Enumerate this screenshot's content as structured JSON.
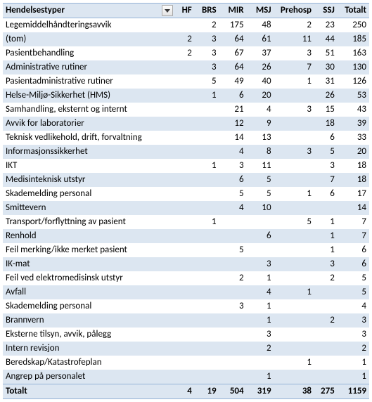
{
  "header": {
    "label": "Hendelsestyper",
    "columns": [
      "HF",
      "BRS",
      "MIR",
      "MSJ",
      "Prehosp",
      "SSJ",
      "Totalt"
    ]
  },
  "rows": [
    {
      "label": "Legemiddelhåndteringsavvik",
      "v": [
        "",
        "2",
        "175",
        "48",
        "2",
        "23",
        "250"
      ]
    },
    {
      "label": "(tom)",
      "v": [
        "2",
        "3",
        "64",
        "61",
        "11",
        "44",
        "185"
      ]
    },
    {
      "label": "Pasientbehandling",
      "v": [
        "2",
        "3",
        "67",
        "37",
        "3",
        "51",
        "163"
      ]
    },
    {
      "label": "Administrative rutiner",
      "v": [
        "",
        "3",
        "64",
        "26",
        "7",
        "30",
        "130"
      ]
    },
    {
      "label": "Pasientadministrative rutiner",
      "v": [
        "",
        "5",
        "49",
        "40",
        "1",
        "31",
        "126"
      ]
    },
    {
      "label": "Helse-Miljø-Sikkerhet (HMS)",
      "v": [
        "",
        "1",
        "6",
        "20",
        "",
        "26",
        "53"
      ]
    },
    {
      "label": "Samhandling, eksternt og internt",
      "v": [
        "",
        "",
        "21",
        "4",
        "3",
        "15",
        "43"
      ]
    },
    {
      "label": "Avvik for laboratorier",
      "v": [
        "",
        "",
        "12",
        "9",
        "",
        "18",
        "39"
      ]
    },
    {
      "label": "Teknisk vedlikehold, drift, forvaltning",
      "v": [
        "",
        "",
        "14",
        "13",
        "",
        "6",
        "33"
      ]
    },
    {
      "label": "Informasjonssikkerhet",
      "v": [
        "",
        "",
        "4",
        "8",
        "3",
        "5",
        "20"
      ]
    },
    {
      "label": "IKT",
      "v": [
        "",
        "1",
        "3",
        "11",
        "",
        "3",
        "18"
      ]
    },
    {
      "label": "Medisinteknisk utstyr",
      "v": [
        "",
        "",
        "6",
        "5",
        "",
        "7",
        "18"
      ]
    },
    {
      "label": "Skademelding personal",
      "v": [
        "",
        "",
        "5",
        "5",
        "1",
        "6",
        "17"
      ]
    },
    {
      "label": "Smittevern",
      "v": [
        "",
        "",
        "4",
        "10",
        "",
        "",
        "14"
      ]
    },
    {
      "label": "Transport/forflyttning av pasient",
      "v": [
        "",
        "1",
        "",
        "",
        "5",
        "1",
        "7"
      ]
    },
    {
      "label": "Renhold",
      "v": [
        "",
        "",
        "",
        "6",
        "",
        "1",
        "7"
      ]
    },
    {
      "label": "Feil merking/ikke merket pasient",
      "v": [
        "",
        "",
        "5",
        "",
        "",
        "1",
        "6"
      ]
    },
    {
      "label": "IK-mat",
      "v": [
        "",
        "",
        "",
        "3",
        "",
        "3",
        "6"
      ]
    },
    {
      "label": "Feil ved elektromedisinsk utstyr",
      "v": [
        "",
        "",
        "2",
        "1",
        "",
        "2",
        "5"
      ]
    },
    {
      "label": "Avfall",
      "v": [
        "",
        "",
        "",
        "4",
        "1",
        "",
        "5"
      ]
    },
    {
      "label": "Skademelding personal",
      "v": [
        "",
        "",
        "3",
        "1",
        "",
        "",
        "4"
      ]
    },
    {
      "label": "Brannvern",
      "v": [
        "",
        "",
        "",
        "1",
        "",
        "2",
        "3"
      ]
    },
    {
      "label": "Eksterne tilsyn, avvik, pålegg",
      "v": [
        "",
        "",
        "",
        "3",
        "",
        "",
        "3"
      ]
    },
    {
      "label": "Intern revisjon",
      "v": [
        "",
        "",
        "",
        "2",
        "",
        "",
        "2"
      ]
    },
    {
      "label": "Beredskap/Katastrofeplan",
      "v": [
        "",
        "",
        "",
        "",
        "1",
        "",
        "1"
      ]
    },
    {
      "label": "Angrep på personalet",
      "v": [
        "",
        "",
        "",
        "1",
        "",
        "",
        "1"
      ]
    }
  ],
  "footer": {
    "label": "Totalt",
    "v": [
      "4",
      "19",
      "504",
      "319",
      "38",
      "275",
      "1159"
    ]
  },
  "style": {
    "band_light": "#ffffff",
    "band_dark": "#dce6f1",
    "border": "#95b3d7",
    "font": "Calibri",
    "fontsize_pt": 10
  }
}
